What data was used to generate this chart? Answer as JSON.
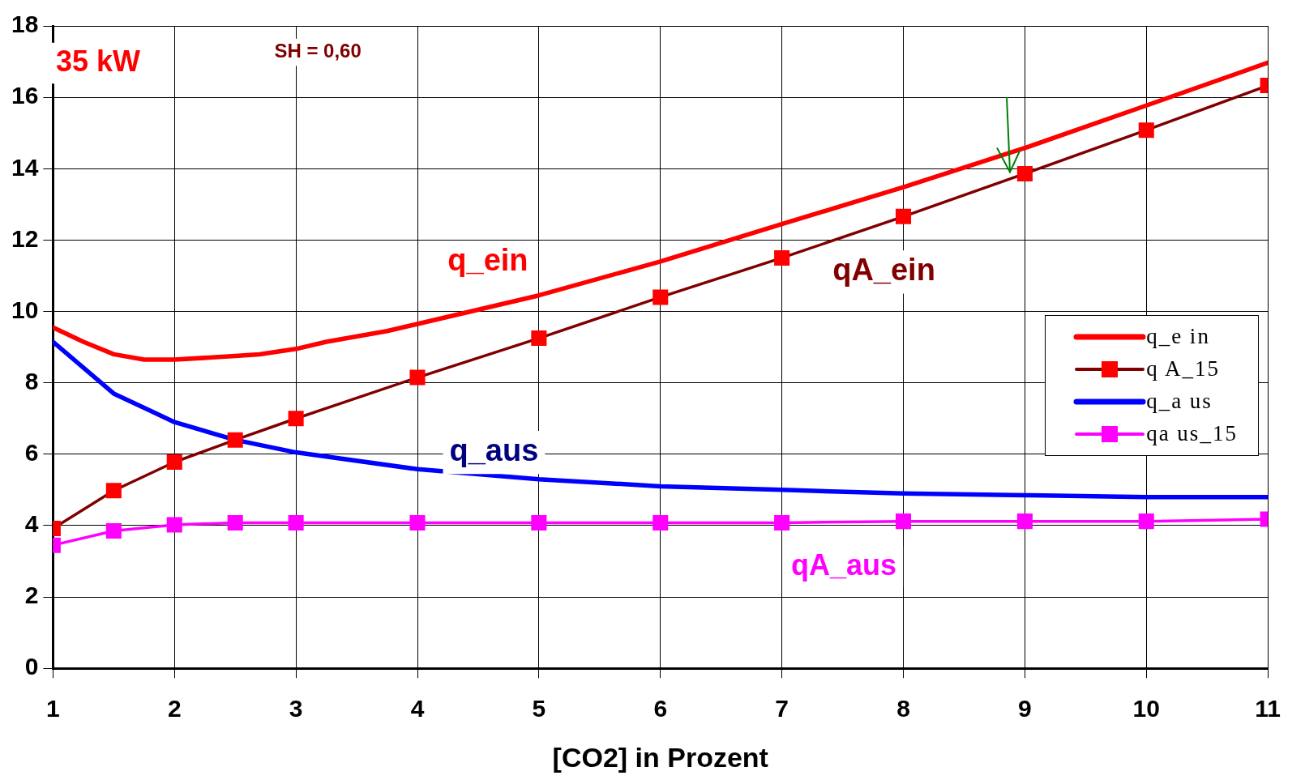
{
  "chart_data": {
    "type": "line",
    "xlabel": "[CO2] in Prozent",
    "xlim": [
      1,
      11
    ],
    "xticks": [
      1,
      2,
      3,
      4,
      5,
      6,
      7,
      8,
      9,
      10,
      11
    ],
    "ylim": [
      0,
      18
    ],
    "yticks": [
      0,
      2,
      4,
      6,
      8,
      10,
      12,
      14,
      16,
      18
    ],
    "grid": true,
    "legend": "right",
    "series": [
      {
        "name": "q_e in",
        "color": "#ff0000",
        "marker": "none",
        "x": [
          1,
          1.25,
          1.5,
          1.75,
          2,
          2.5,
          2.7,
          3,
          3.25,
          3.75,
          4,
          5,
          6,
          7,
          8,
          9,
          10,
          11
        ],
        "values": [
          9.55,
          9.15,
          8.8,
          8.65,
          8.65,
          8.75,
          8.8,
          8.95,
          9.15,
          9.45,
          9.65,
          10.45,
          11.4,
          12.45,
          13.48,
          14.58,
          15.77,
          16.97
        ]
      },
      {
        "name": "q A_15",
        "color": "#800000",
        "marker": "square",
        "colors": [
          "#ff0000",
          "#ff0000",
          "#ff0000",
          "#ff0000",
          "#ff0000",
          "#ff0000",
          "#ff0000",
          "#ff0000",
          "#ff0000",
          "#ff0000",
          "#ff0000",
          "#ff0000",
          "#ff0000"
        ],
        "x": [
          1,
          1.5,
          2,
          2.5,
          3,
          4,
          5,
          6,
          7,
          8,
          9,
          10,
          11
        ],
        "values": [
          3.92,
          4.98,
          5.78,
          6.4,
          7.0,
          8.15,
          9.25,
          10.4,
          11.5,
          12.66,
          13.86,
          15.08,
          16.33
        ]
      },
      {
        "name": "q_a us",
        "color": "#0000ff",
        "marker": "none",
        "x": [
          1,
          1.5,
          2,
          2.5,
          3,
          4,
          5,
          6,
          7,
          8,
          9,
          10,
          11
        ],
        "values": [
          9.15,
          7.7,
          6.9,
          6.4,
          6.05,
          5.58,
          5.3,
          5.1,
          5.0,
          4.9,
          4.85,
          4.8,
          4.8
        ]
      },
      {
        "name": "qa us_15",
        "color": "#ff00ff",
        "marker": "square",
        "x": [
          1,
          1.5,
          2,
          2.5,
          3,
          4,
          5,
          6,
          7,
          8,
          9,
          10,
          11
        ],
        "values": [
          3.45,
          3.85,
          4.02,
          4.08,
          4.08,
          4.08,
          4.08,
          4.08,
          4.08,
          4.12,
          4.12,
          4.12,
          4.18
        ]
      }
    ],
    "annotations": [
      "35 kW",
      "SH = 0,60",
      "q_ein",
      "qA_ein",
      "q_aus",
      "qA_aus"
    ]
  }
}
